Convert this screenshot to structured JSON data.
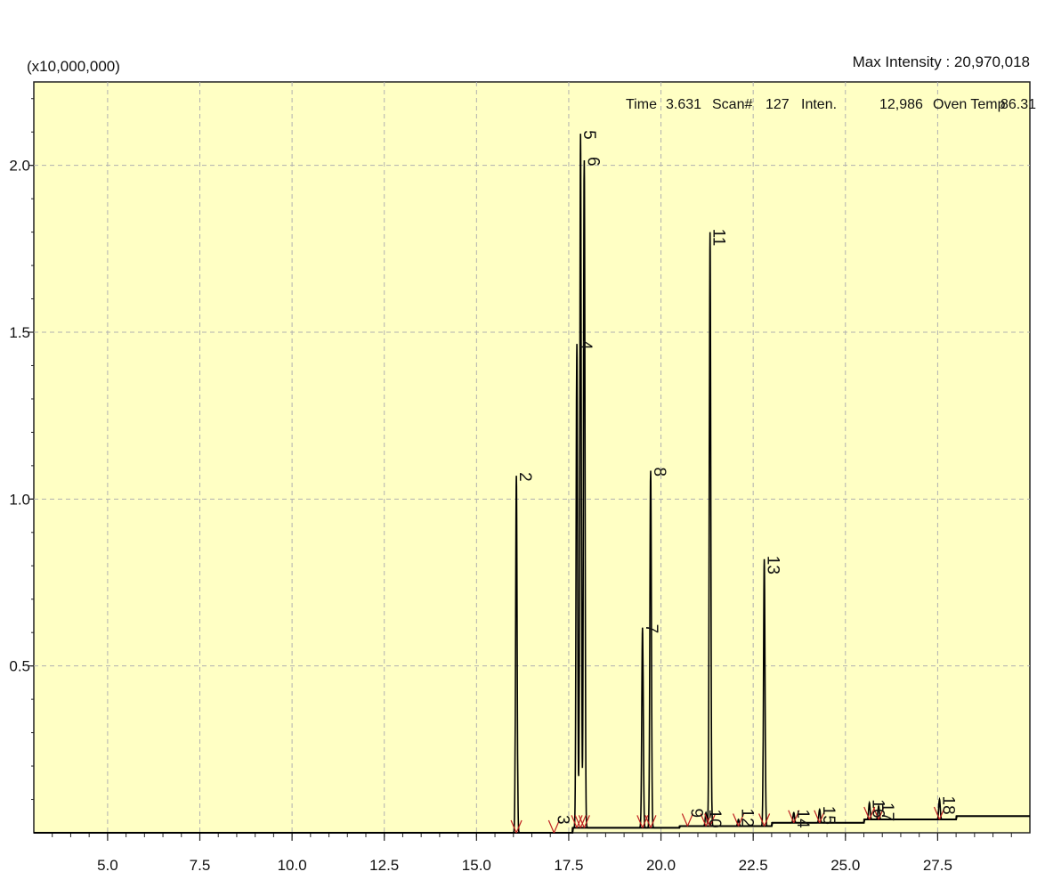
{
  "header": {
    "scale_label": "(x10,000,000)",
    "max_intensity": "Max Intensity : 20,970,018"
  },
  "readout": {
    "time_label": "Time",
    "time_value": "3.631",
    "scan_label": "Scan#",
    "scan_value": "127",
    "inten_label": "Inten.",
    "inten_value": "12,986",
    "oven_label": "Oven Temp",
    "oven_value": "86.31"
  },
  "colors": {
    "plot_bg": "#ffffc4",
    "trace": "#000000",
    "peak_marker": "#c02020",
    "grid": "#b0b0b0"
  },
  "chart_data": {
    "type": "line",
    "title": "",
    "xlabel": "",
    "ylabel": "",
    "xlim": [
      3.0,
      30.0
    ],
    "ylim": [
      0.0,
      2.25
    ],
    "grid": true,
    "x_ticks": [
      "5.0",
      "7.5",
      "10.0",
      "12.5",
      "15.0",
      "17.5",
      "20.0",
      "22.5",
      "25.0",
      "27.5"
    ],
    "y_ticks": [
      "0.5",
      "1.0",
      "1.5",
      "2.0"
    ],
    "peaks": [
      {
        "label": "2",
        "rt": 16.08,
        "height": 1.07
      },
      {
        "label": "3",
        "rt": 17.1,
        "height": 0.0
      },
      {
        "label": "4",
        "rt": 17.72,
        "height": 1.45
      },
      {
        "label": "5",
        "rt": 17.82,
        "height": 2.08
      },
      {
        "label": "6",
        "rt": 17.92,
        "height": 2.0
      },
      {
        "label": "7",
        "rt": 19.5,
        "height": 0.6
      },
      {
        "label": "8",
        "rt": 19.72,
        "height": 1.07
      },
      {
        "label": "9",
        "rt": 20.72,
        "height": 0.0
      },
      {
        "label": "10",
        "rt": 21.22,
        "height": 0.04
      },
      {
        "label": "11",
        "rt": 21.33,
        "height": 1.78
      },
      {
        "label": "12",
        "rt": 22.1,
        "height": 0.02
      },
      {
        "label": "13",
        "rt": 22.8,
        "height": 0.8
      },
      {
        "label": "14",
        "rt": 23.6,
        "height": 0.03
      },
      {
        "label": "15",
        "rt": 24.3,
        "height": 0.04
      },
      {
        "label": "16",
        "rt": 25.65,
        "height": 0.05
      },
      {
        "label": "17",
        "rt": 25.9,
        "height": 0.04
      },
      {
        "label": "18",
        "rt": 27.55,
        "height": 0.06
      }
    ]
  }
}
